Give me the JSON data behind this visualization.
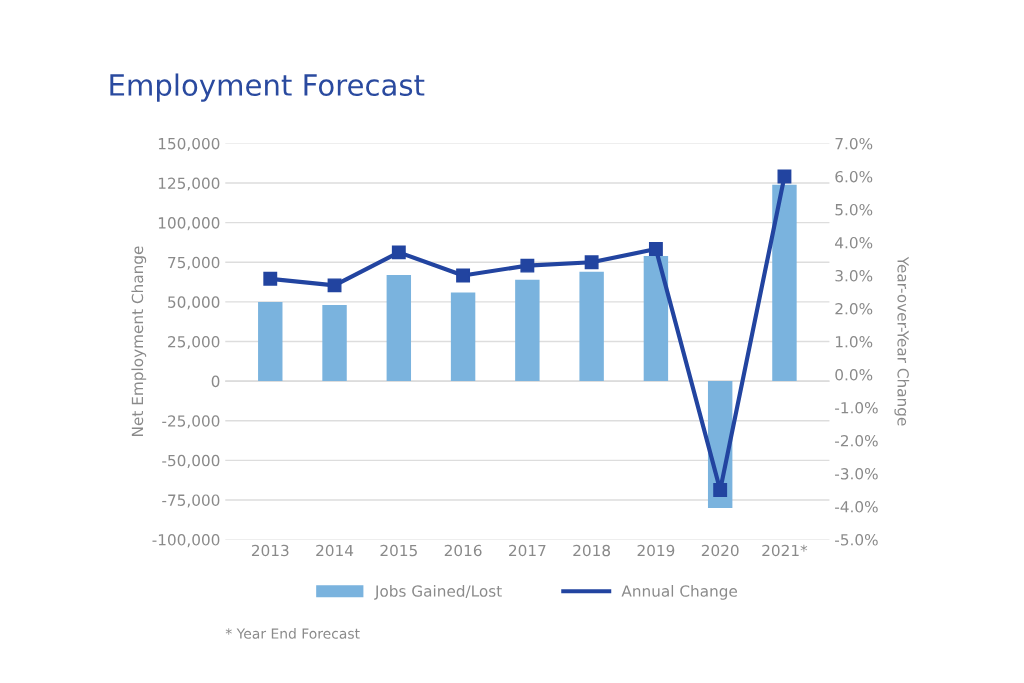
{
  "chart_data": {
    "type": "bar",
    "title": "Employment Forecast",
    "ylabel": "Net Employment Change",
    "y2label": "Year-over-Year Change",
    "categories": [
      "2013",
      "2014",
      "2015",
      "2016",
      "2017",
      "2018",
      "2019",
      "2020",
      "2021*"
    ],
    "series": [
      {
        "name": "Jobs Gained/Lost",
        "color": "#7ab3de",
        "values": [
          50000,
          48000,
          67000,
          56000,
          64000,
          69000,
          79000,
          -80000,
          124000
        ]
      },
      {
        "name": "Annual Change",
        "type": "line",
        "axis": "y2",
        "color": "#2244a0",
        "marker": "square",
        "values": [
          2.9,
          2.7,
          3.7,
          3.0,
          3.3,
          3.4,
          3.8,
          -3.5,
          6.0
        ]
      }
    ],
    "ylim": [
      -100000,
      150000
    ],
    "yticks": [
      {
        "value": -100000,
        "label": "-100,000"
      },
      {
        "value": -75000,
        "label": "-75,000"
      },
      {
        "value": -50000,
        "label": "-50,000"
      },
      {
        "value": -25000,
        "label": "-25,000"
      },
      0,
      {
        "value": 25000,
        "label": "25,000"
      },
      {
        "value": 50000,
        "label": "50,000"
      },
      {
        "value": 75000,
        "label": "75,000"
      },
      {
        "value": 100000,
        "label": "100,000"
      },
      {
        "value": 125000,
        "label": "125,000"
      },
      {
        "value": 150000,
        "label": "150,000"
      }
    ],
    "y2lim": [
      -5,
      7
    ],
    "y2ticks": [
      {
        "value": -5,
        "label": "-5.0%"
      },
      {
        "value": -4,
        "label": "-4.0%"
      },
      {
        "value": -3,
        "label": "-3.0%"
      },
      {
        "value": -2,
        "label": "-2.0%"
      },
      {
        "value": -1,
        "label": "-1.0%"
      },
      {
        "value": 0,
        "label": "0.0%"
      },
      {
        "value": 1,
        "label": "1.0%"
      },
      {
        "value": 2,
        "label": "2.0%"
      },
      {
        "value": 3,
        "label": "3.0%"
      },
      {
        "value": 4,
        "label": "4.0%"
      },
      {
        "value": 5,
        "label": "5.0%"
      },
      {
        "value": 6,
        "label": "6.0%"
      },
      {
        "value": 7,
        "label": "7.0%"
      }
    ],
    "grid": "y",
    "legend": "bottom",
    "annotations": [
      "* Year End Forecast"
    ]
  }
}
